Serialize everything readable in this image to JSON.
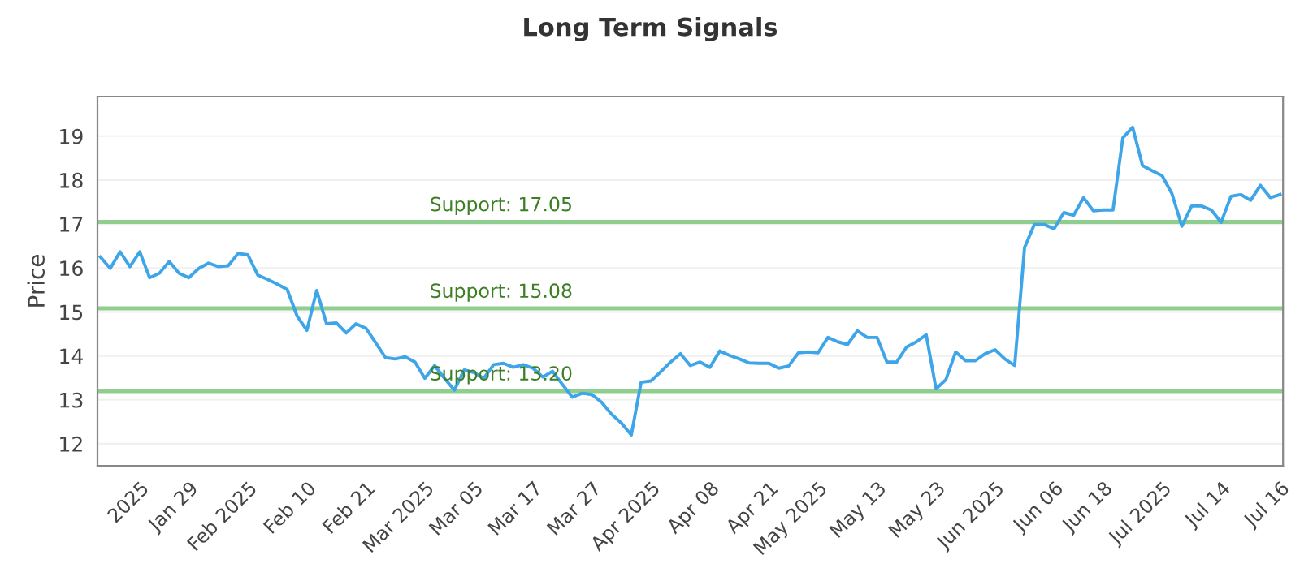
{
  "chart_data": {
    "type": "line",
    "title": "Long Term Signals",
    "ylabel": "Price",
    "categories": [
      null,
      null,
      null,
      null,
      "2025",
      null,
      null,
      null,
      null,
      "Jan 29",
      null,
      null,
      null,
      null,
      null,
      "Feb 2025",
      null,
      null,
      null,
      null,
      null,
      "Feb 10",
      null,
      null,
      null,
      null,
      null,
      "Feb 21",
      null,
      null,
      null,
      null,
      null,
      "Mar 2025",
      null,
      null,
      null,
      null,
      "Mar 05",
      null,
      null,
      null,
      null,
      null,
      "Mar 17",
      null,
      null,
      null,
      null,
      null,
      "Mar 27",
      null,
      null,
      null,
      null,
      null,
      "Apr 2025",
      null,
      null,
      null,
      null,
      null,
      "Apr 08",
      null,
      null,
      null,
      null,
      null,
      "Apr 21",
      null,
      null,
      null,
      null,
      "May 2025",
      null,
      null,
      null,
      null,
      null,
      "May 13",
      null,
      null,
      null,
      null,
      null,
      "May 23",
      null,
      null,
      null,
      null,
      null,
      "Jun 2025",
      null,
      null,
      null,
      null,
      null,
      "Jun 06",
      null,
      null,
      null,
      null,
      "Jun 18",
      null,
      null,
      null,
      null,
      null,
      "Jul 2025",
      null,
      null,
      null,
      null,
      null,
      "Jul 14",
      null,
      null,
      null,
      null,
      null,
      "Jul 16"
    ],
    "series": [
      {
        "color": "#3da5e8",
        "values": [
          16.25,
          15.99,
          16.37,
          16.03,
          16.37,
          15.78,
          15.88,
          16.15,
          15.88,
          15.78,
          15.99,
          16.11,
          16.03,
          16.05,
          16.33,
          16.3,
          15.84,
          15.74,
          15.63,
          15.51,
          14.91,
          14.58,
          15.49,
          14.73,
          14.75,
          14.52,
          14.73,
          14.63,
          14.3,
          13.96,
          13.93,
          13.98,
          13.86,
          13.49,
          13.78,
          13.49,
          13.22,
          13.68,
          13.62,
          13.49,
          13.8,
          13.83,
          13.74,
          13.8,
          13.72,
          13.52,
          13.65,
          13.35,
          13.06,
          13.15,
          13.12,
          12.94,
          12.67,
          12.47,
          12.2,
          13.4,
          13.43,
          13.64,
          13.86,
          14.05,
          13.78,
          13.86,
          13.74,
          14.11,
          14.01,
          13.93,
          13.84,
          13.83,
          13.83,
          13.72,
          13.77,
          14.07,
          14.09,
          14.07,
          14.42,
          14.32,
          14.26,
          14.57,
          14.42,
          14.42,
          13.86,
          13.86,
          14.2,
          14.32,
          14.48,
          13.25,
          13.46,
          14.09,
          13.89,
          13.89,
          14.05,
          14.14,
          13.93,
          13.78,
          16.46,
          16.99,
          16.99,
          16.89,
          17.26,
          17.2,
          17.6,
          17.3,
          17.32,
          17.32,
          18.96,
          19.2,
          18.33,
          18.21,
          18.1,
          17.69,
          16.95,
          17.41,
          17.41,
          17.32,
          17.04,
          17.63,
          17.67,
          17.54,
          17.88,
          17.6,
          17.67
        ]
      }
    ],
    "ylim": [
      11.5,
      19.9
    ],
    "yticks": [
      12,
      13,
      14,
      15,
      16,
      17,
      18,
      19
    ],
    "grid": "y",
    "legend": false,
    "marker": "none",
    "line_style": "solid",
    "ref_lines": [
      {
        "axis": "y",
        "value": 17.05,
        "label": "Support: 17.05",
        "color": "#8fce8f"
      },
      {
        "axis": "y",
        "value": 15.08,
        "label": "Support: 15.08",
        "color": "#8fce8f"
      },
      {
        "axis": "y",
        "value": 13.2,
        "label": "Support: 13.20",
        "color": "#8fce8f"
      }
    ]
  }
}
